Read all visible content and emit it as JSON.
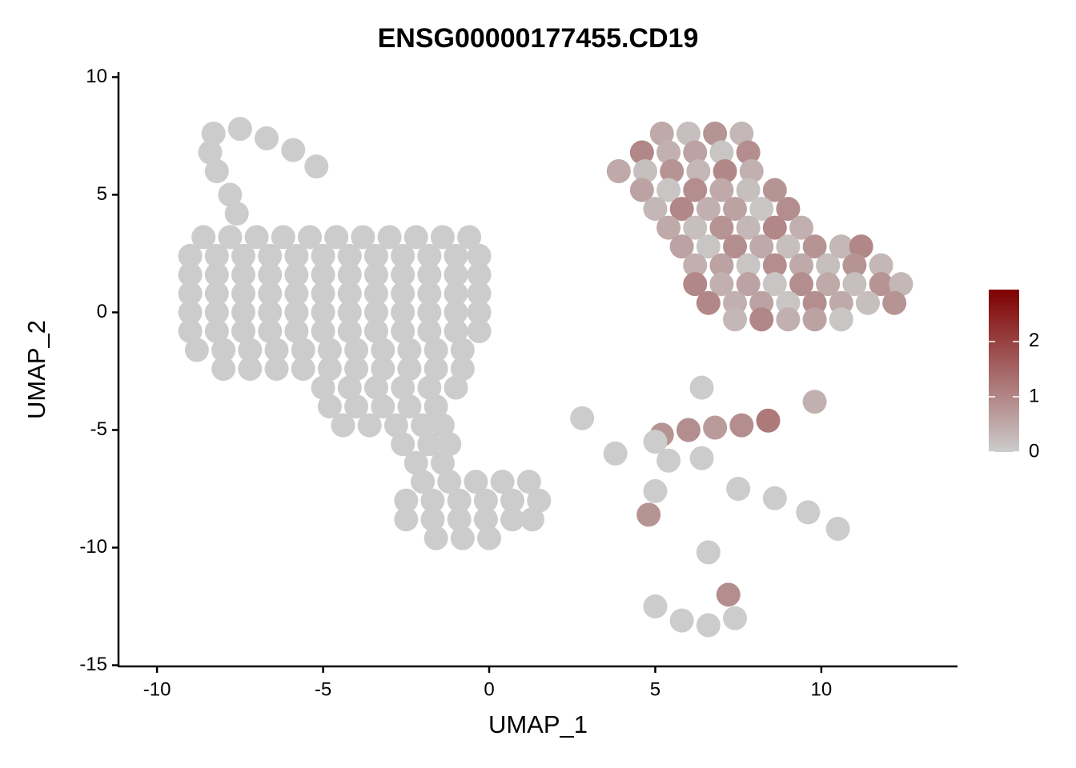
{
  "chart_data": {
    "type": "scatter",
    "title": "ENSG00000177455.CD19",
    "xlabel": "UMAP_1",
    "ylabel": "UMAP_2",
    "xlim": [
      -11.16,
      14.1
    ],
    "ylim": [
      -15.05,
      10.15
    ],
    "xticks": [
      -10,
      -5,
      0,
      5,
      10
    ],
    "yticks": [
      10,
      5,
      0,
      -5,
      -10,
      -15
    ],
    "colors": [
      "#cccccc",
      "#7f0000"
    ],
    "colorbar_lim": [
      0,
      2.94
    ],
    "colorbar_ticks": [
      0,
      1,
      2
    ],
    "x": [
      -8.3,
      -7.5,
      -6.7,
      -5.9,
      -5.2,
      -8.4,
      -8.2,
      -7.8,
      -7.6,
      -8.6,
      -7.8,
      -7,
      -6.2,
      -5.4,
      -4.6,
      -3.8,
      -3,
      -2.2,
      -1.4,
      -0.6,
      -9,
      -8.2,
      -7.4,
      -6.6,
      -5.8,
      -5,
      -4.2,
      -3.4,
      -2.6,
      -1.8,
      -1,
      -0.3,
      -9,
      -8.2,
      -7.4,
      -6.6,
      -5.8,
      -5,
      -4.2,
      -3.4,
      -2.6,
      -1.8,
      -1,
      -0.3,
      -9,
      -8.2,
      -7.4,
      -6.6,
      -5.8,
      -5,
      -4.2,
      -3.4,
      -2.6,
      -1.8,
      -1,
      -0.3,
      -9,
      -8.2,
      -7.4,
      -6.6,
      -5.8,
      -5,
      -4.2,
      -3.4,
      -2.6,
      -1.8,
      -1,
      -0.3,
      -9,
      -8.2,
      -7.4,
      -6.6,
      -5.8,
      -5,
      -4.2,
      -3.4,
      -2.6,
      -1.8,
      -1,
      -0.3,
      -8.8,
      -8,
      -7.2,
      -6.4,
      -5.6,
      -4.8,
      -4,
      -3.2,
      -2.4,
      -1.6,
      -0.8,
      -8,
      -7.2,
      -6.4,
      -5.6,
      -4.8,
      -4,
      -3.2,
      -2.4,
      -1.6,
      -0.8,
      -5,
      -4.2,
      -3.4,
      -2.6,
      -1.8,
      -1,
      -4.8,
      -4,
      -3.2,
      -2.4,
      -1.6,
      -4.4,
      -3.6,
      -2.8,
      -2,
      -1.4,
      -2.6,
      -1.8,
      -1.2,
      -2.2,
      -1.4,
      -2,
      -1.2,
      -0.4,
      0.4,
      1.2,
      -2.5,
      -1.7,
      -0.9,
      -0.1,
      0.7,
      1.5,
      -2.5,
      -1.7,
      -0.9,
      -0.1,
      0.7,
      1.3,
      -1.6,
      -0.8,
      0,
      5.2,
      6,
      6.8,
      7.6,
      4.6,
      5.4,
      6.2,
      7,
      7.8,
      3.9,
      4.7,
      5.5,
      6.3,
      7.1,
      7.9,
      4.6,
      5.4,
      6.2,
      7,
      7.8,
      8.6,
      5,
      5.8,
      6.6,
      7.4,
      8.2,
      9,
      5.4,
      6.2,
      7,
      7.8,
      8.6,
      9.4,
      5.8,
      6.6,
      7.4,
      8.2,
      9,
      9.8,
      10.6,
      11.2,
      6.2,
      7,
      7.8,
      8.6,
      9.4,
      10.2,
      11,
      11.8,
      6.2,
      7,
      7.8,
      8.6,
      9.4,
      10.2,
      11,
      11.8,
      12.4,
      6.6,
      7.4,
      8.2,
      9,
      9.8,
      10.6,
      11.4,
      12.2,
      7.4,
      8.2,
      9,
      9.8,
      10.6,
      6.4,
      5.2,
      6,
      6.8,
      7.6,
      8.4,
      9.8,
      3.8,
      2.8,
      5,
      5.4,
      6.4,
      7.5,
      8.6,
      9.6,
      10.5,
      4.8,
      5,
      6.6,
      5,
      5.8,
      6.6,
      7.4,
      7.2
    ],
    "y": [
      7.6,
      7.8,
      7.4,
      6.9,
      6.2,
      6.8,
      6.0,
      5.0,
      4.2,
      3.2,
      3.2,
      3.2,
      3.2,
      3.2,
      3.2,
      3.2,
      3.2,
      3.2,
      3.2,
      3.2,
      2.4,
      2.4,
      2.4,
      2.4,
      2.4,
      2.4,
      2.4,
      2.4,
      2.4,
      2.4,
      2.4,
      2.4,
      1.6,
      1.6,
      1.6,
      1.6,
      1.6,
      1.6,
      1.6,
      1.6,
      1.6,
      1.6,
      1.6,
      1.6,
      0.8,
      0.8,
      0.8,
      0.8,
      0.8,
      0.8,
      0.8,
      0.8,
      0.8,
      0.8,
      0.8,
      0.8,
      0,
      0,
      0,
      0,
      0,
      0,
      0,
      0,
      0,
      0,
      0,
      0,
      -0.8,
      -0.8,
      -0.8,
      -0.8,
      -0.8,
      -0.8,
      -0.8,
      -0.8,
      -0.8,
      -0.8,
      -0.8,
      -0.8,
      -1.6,
      -1.6,
      -1.6,
      -1.6,
      -1.6,
      -1.6,
      -1.6,
      -1.6,
      -1.6,
      -1.6,
      -1.6,
      -2.4,
      -2.4,
      -2.4,
      -2.4,
      -2.4,
      -2.4,
      -2.4,
      -2.4,
      -2.4,
      -2.4,
      -3.2,
      -3.2,
      -3.2,
      -3.2,
      -3.2,
      -3.2,
      -4,
      -4,
      -4,
      -4,
      -4,
      -4.8,
      -4.8,
      -4.8,
      -4.8,
      -4.8,
      -5.6,
      -5.6,
      -5.6,
      -6.4,
      -6.4,
      -7.2,
      -7.2,
      -7.2,
      -7.2,
      -7.2,
      -8,
      -8,
      -8,
      -8,
      -8,
      -8,
      -8.8,
      -8.8,
      -8.8,
      -8.8,
      -8.8,
      -8.8,
      -9.6,
      -9.6,
      -9.6,
      7.6,
      7.6,
      7.6,
      7.6,
      6.8,
      6.8,
      6.8,
      6.8,
      6.8,
      6,
      6,
      6,
      6,
      6,
      6,
      5.2,
      5.2,
      5.2,
      5.2,
      5.2,
      5.2,
      4.4,
      4.4,
      4.4,
      4.4,
      4.4,
      4.4,
      3.6,
      3.6,
      3.6,
      3.6,
      3.6,
      3.6,
      2.8,
      2.8,
      2.8,
      2.8,
      2.8,
      2.8,
      2.8,
      2.8,
      2,
      2,
      2,
      2,
      2,
      2,
      2,
      2,
      1.2,
      1.2,
      1.2,
      1.2,
      1.2,
      1.2,
      1.2,
      1.2,
      1.2,
      0.4,
      0.4,
      0.4,
      0.4,
      0.4,
      0.4,
      0.4,
      0.4,
      -0.3,
      -0.3,
      -0.3,
      -0.3,
      -0.3,
      -3.2,
      -5.2,
      -5,
      -4.9,
      -4.8,
      -4.6,
      -3.8,
      -6,
      -4.5,
      -5.5,
      -6.3,
      -6.2,
      -7.5,
      -7.9,
      -8.5,
      -9.2,
      -8.6,
      -7.6,
      -10.2,
      -12.5,
      -13.1,
      -13.3,
      -13,
      -12
    ],
    "values": [
      0,
      0,
      0,
      0,
      0,
      0,
      0,
      0,
      0,
      0,
      0,
      0,
      0,
      0,
      0,
      0,
      0,
      0,
      0,
      0,
      0,
      0,
      0,
      0,
      0,
      0,
      0,
      0,
      0,
      0,
      0,
      0,
      0,
      0,
      0,
      0,
      0,
      0,
      0,
      0,
      0,
      0,
      0,
      0,
      0,
      0,
      0,
      0,
      0,
      0,
      0,
      0,
      0,
      0,
      0,
      0,
      0,
      0,
      0,
      0,
      0,
      0,
      0,
      0,
      0,
      0,
      0,
      0,
      0,
      0,
      0,
      0,
      0,
      0,
      0,
      0,
      0,
      0,
      0,
      0,
      0,
      0,
      0,
      0,
      0,
      0,
      0,
      0,
      0,
      0,
      0,
      0,
      0,
      0,
      0,
      0,
      0,
      0,
      0,
      0,
      0,
      0,
      0,
      0,
      0,
      0,
      0,
      0,
      0,
      0,
      0,
      0,
      0,
      0,
      0,
      0,
      0,
      0,
      0,
      0,
      0,
      0,
      0,
      0,
      0,
      0,
      0,
      0,
      0,
      0,
      0,
      0,
      0,
      0,
      0,
      0,
      0,
      0,
      0,
      0,
      0,
      0,
      0.5,
      0.2,
      0.8,
      0.3,
      1.0,
      0.4,
      0.6,
      0.1,
      0.9,
      0.5,
      0.2,
      0.8,
      0.3,
      1.0,
      0.4,
      0.6,
      0.1,
      0.9,
      0.5,
      0.2,
      0.8,
      0.3,
      1.0,
      0.4,
      0.6,
      0.1,
      0.9,
      0.5,
      0.2,
      0.8,
      0.3,
      1.0,
      0.4,
      0.6,
      0.1,
      0.9,
      0.5,
      0.2,
      0.8,
      0.3,
      1.0,
      0.4,
      0.6,
      0.1,
      0.9,
      0.5,
      0.2,
      0.8,
      0.3,
      1.0,
      0.4,
      0.6,
      0.1,
      0.9,
      0.5,
      0.2,
      0.8,
      0.3,
      1.0,
      0.4,
      0.6,
      0.1,
      0.9,
      0.5,
      0.2,
      0.8,
      0.3,
      1.0,
      0.4,
      0.6,
      0.1,
      0,
      0.8,
      0.9,
      0.7,
      0.9,
      1.2,
      0.4,
      0,
      0,
      0,
      0,
      0,
      0,
      0,
      0,
      0,
      0.8,
      0,
      0,
      0,
      0,
      0,
      0,
      0.9
    ]
  }
}
